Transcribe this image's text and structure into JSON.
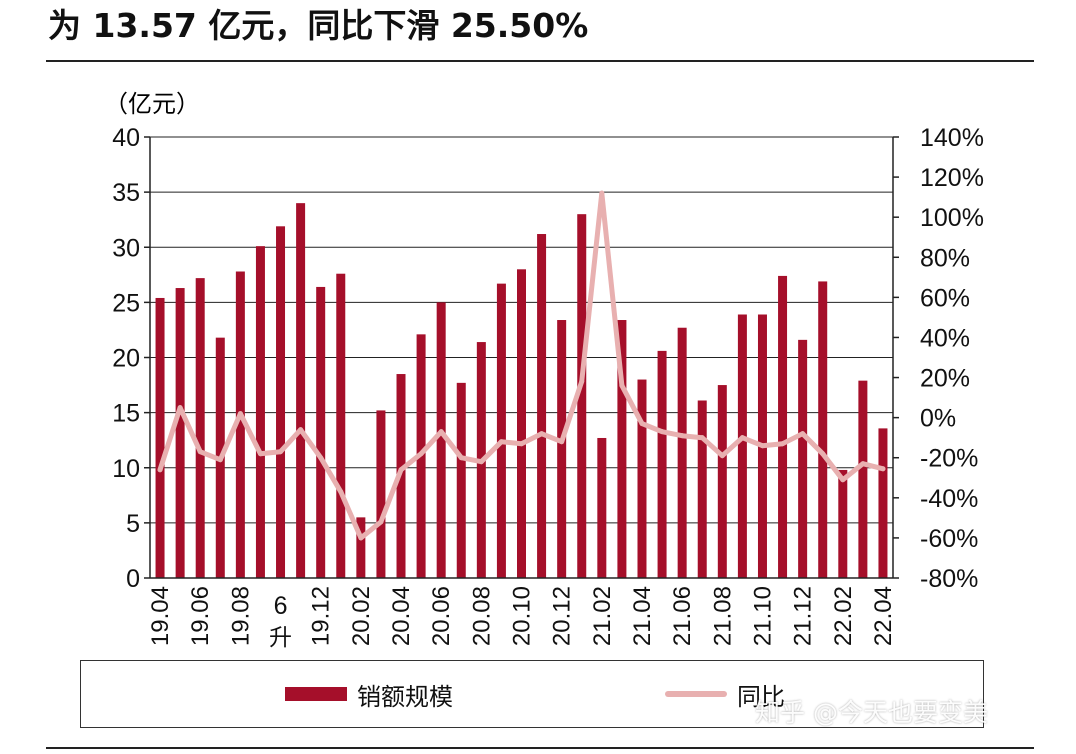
{
  "headline": "为 13.57 亿元，同比下滑 25.50%",
  "watermark": "知乎 @今天也要变美",
  "colors": {
    "bar": "#a50f2a",
    "line": "#e8b0b0",
    "axis": "#222222",
    "grid": "#222222"
  },
  "chart_data": {
    "type": "bar",
    "left_unit": "（亿元）",
    "x_labels": [
      "19.04",
      "19.06",
      "19.08",
      "6\n升",
      "19.12",
      "20.02",
      "20.04",
      "20.06",
      "20.08",
      "20.10",
      "20.12",
      "21.02",
      "21.04",
      "21.06",
      "21.08",
      "21.10",
      "21.12",
      "22.02",
      "22.04"
    ],
    "y_left": {
      "min": 0,
      "max": 40,
      "step": 5,
      "ticks": [
        "0",
        "5",
        "10",
        "15",
        "20",
        "25",
        "30",
        "35",
        "40"
      ]
    },
    "y_right": {
      "min": -80,
      "max": 140,
      "step": 20,
      "ticks": [
        "-80%",
        "-60%",
        "-40%",
        "-20%",
        "0%",
        "20%",
        "40%",
        "60%",
        "80%",
        "100%",
        "120%",
        "140%"
      ]
    },
    "grid": "horizontal",
    "series": [
      {
        "name": "销额规模",
        "type": "bar",
        "axis": "left",
        "values": [
          25.4,
          26.3,
          27.2,
          21.8,
          27.8,
          30.1,
          31.9,
          34.0,
          26.4,
          27.6,
          5.5,
          15.2,
          18.5,
          22.1,
          25.0,
          17.7,
          21.4,
          26.7,
          28.0,
          31.2,
          23.4,
          33.0,
          12.7,
          23.4,
          18.0,
          20.6,
          22.7,
          16.1,
          17.5,
          23.9,
          23.9,
          27.4,
          21.6,
          26.9,
          9.8,
          17.9,
          13.57
        ]
      },
      {
        "name": "同比",
        "type": "line",
        "axis": "right",
        "values": [
          -26,
          5,
          -17,
          -21,
          2,
          -18,
          -17,
          -6,
          -20,
          -37,
          -60,
          -52,
          -26,
          -18,
          -7,
          -20,
          -22,
          -12,
          -13,
          -8,
          -12,
          18,
          112,
          16,
          -3,
          -7,
          -9,
          -10,
          -19,
          -10,
          -14,
          -13,
          -8,
          -18,
          -31,
          -23,
          -25.5
        ]
      }
    ]
  }
}
